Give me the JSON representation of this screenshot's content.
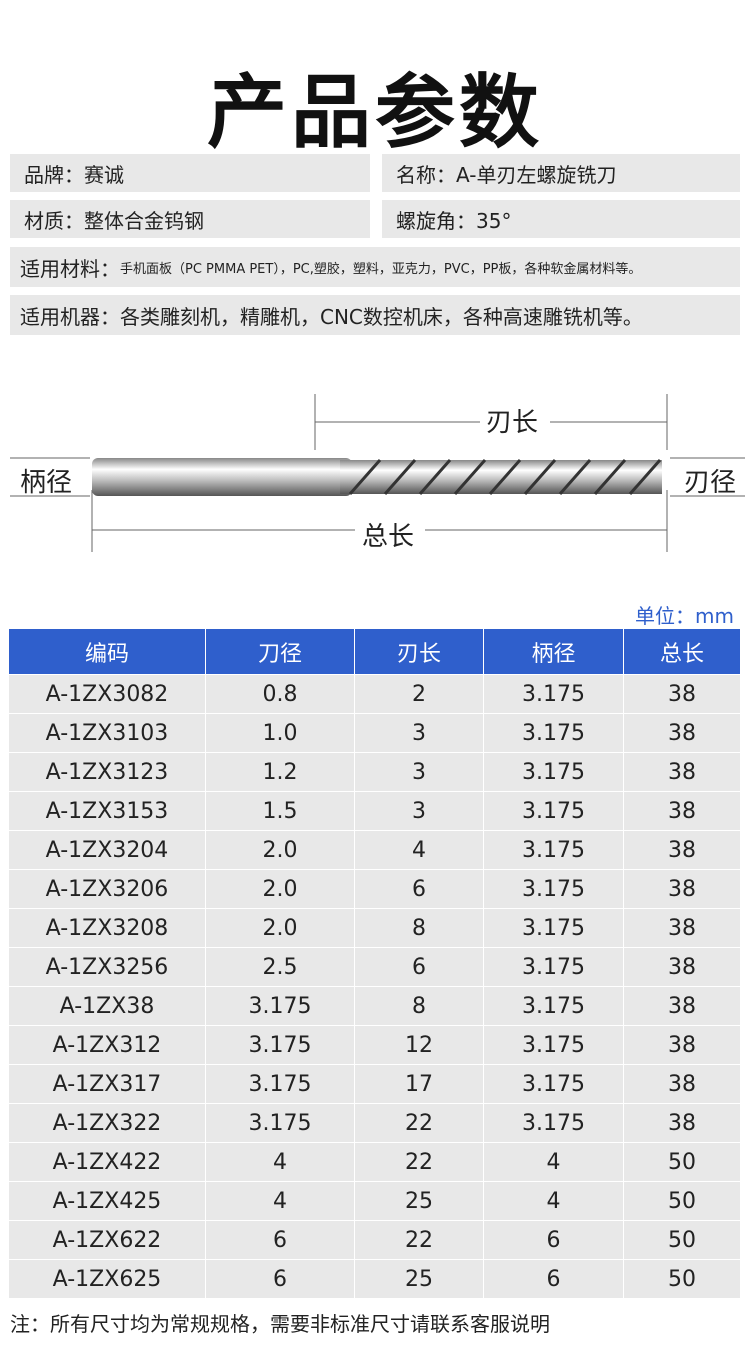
{
  "title": "产品参数",
  "specs": {
    "brand": "品牌：赛诚",
    "name": "名称：A-单刃左螺旋铣刀",
    "material": "材质：整体合金钨钢",
    "helix": "螺旋角：35°",
    "materials_label": "适用材料：",
    "materials_value": "手机面板（PC PMMA PET），PC,塑胶，塑料，亚克力，PVC，PP板，各种软金属材料等。",
    "machines": "适用机器：各类雕刻机，精雕机，CNC数控机床，各种高速雕铣机等。"
  },
  "diagram": {
    "blade_length": "刃长",
    "shank_diameter": "柄径",
    "blade_diameter": "刃径",
    "total_length": "总长"
  },
  "unit": "单位：mm",
  "table": {
    "headers": [
      "编码",
      "刀径",
      "刃长",
      "柄径",
      "总长"
    ],
    "rows": [
      [
        "A-1ZX3082",
        "0.8",
        "2",
        "3.175",
        "38"
      ],
      [
        "A-1ZX3103",
        "1.0",
        "3",
        "3.175",
        "38"
      ],
      [
        "A-1ZX3123",
        "1.2",
        "3",
        "3.175",
        "38"
      ],
      [
        "A-1ZX3153",
        "1.5",
        "3",
        "3.175",
        "38"
      ],
      [
        "A-1ZX3204",
        "2.0",
        "4",
        "3.175",
        "38"
      ],
      [
        "A-1ZX3206",
        "2.0",
        "6",
        "3.175",
        "38"
      ],
      [
        "A-1ZX3208",
        "2.0",
        "8",
        "3.175",
        "38"
      ],
      [
        "A-1ZX3256",
        "2.5",
        "6",
        "3.175",
        "38"
      ],
      [
        "A-1ZX38",
        "3.175",
        "8",
        "3.175",
        "38"
      ],
      [
        "A-1ZX312",
        "3.175",
        "12",
        "3.175",
        "38"
      ],
      [
        "A-1ZX317",
        "3.175",
        "17",
        "3.175",
        "38"
      ],
      [
        "A-1ZX322",
        "3.175",
        "22",
        "3.175",
        "38"
      ],
      [
        "A-1ZX422",
        "4",
        "22",
        "4",
        "50"
      ],
      [
        "A-1ZX425",
        "4",
        "25",
        "4",
        "50"
      ],
      [
        "A-1ZX622",
        "6",
        "22",
        "6",
        "50"
      ],
      [
        "A-1ZX625",
        "6",
        "25",
        "6",
        "50"
      ]
    ]
  },
  "note": "注：所有尺寸均为常规规格，需要非标准尺寸请联系客服说明",
  "colors": {
    "accent": "#2f5fcc",
    "row_bg": "#e8e8e8"
  }
}
